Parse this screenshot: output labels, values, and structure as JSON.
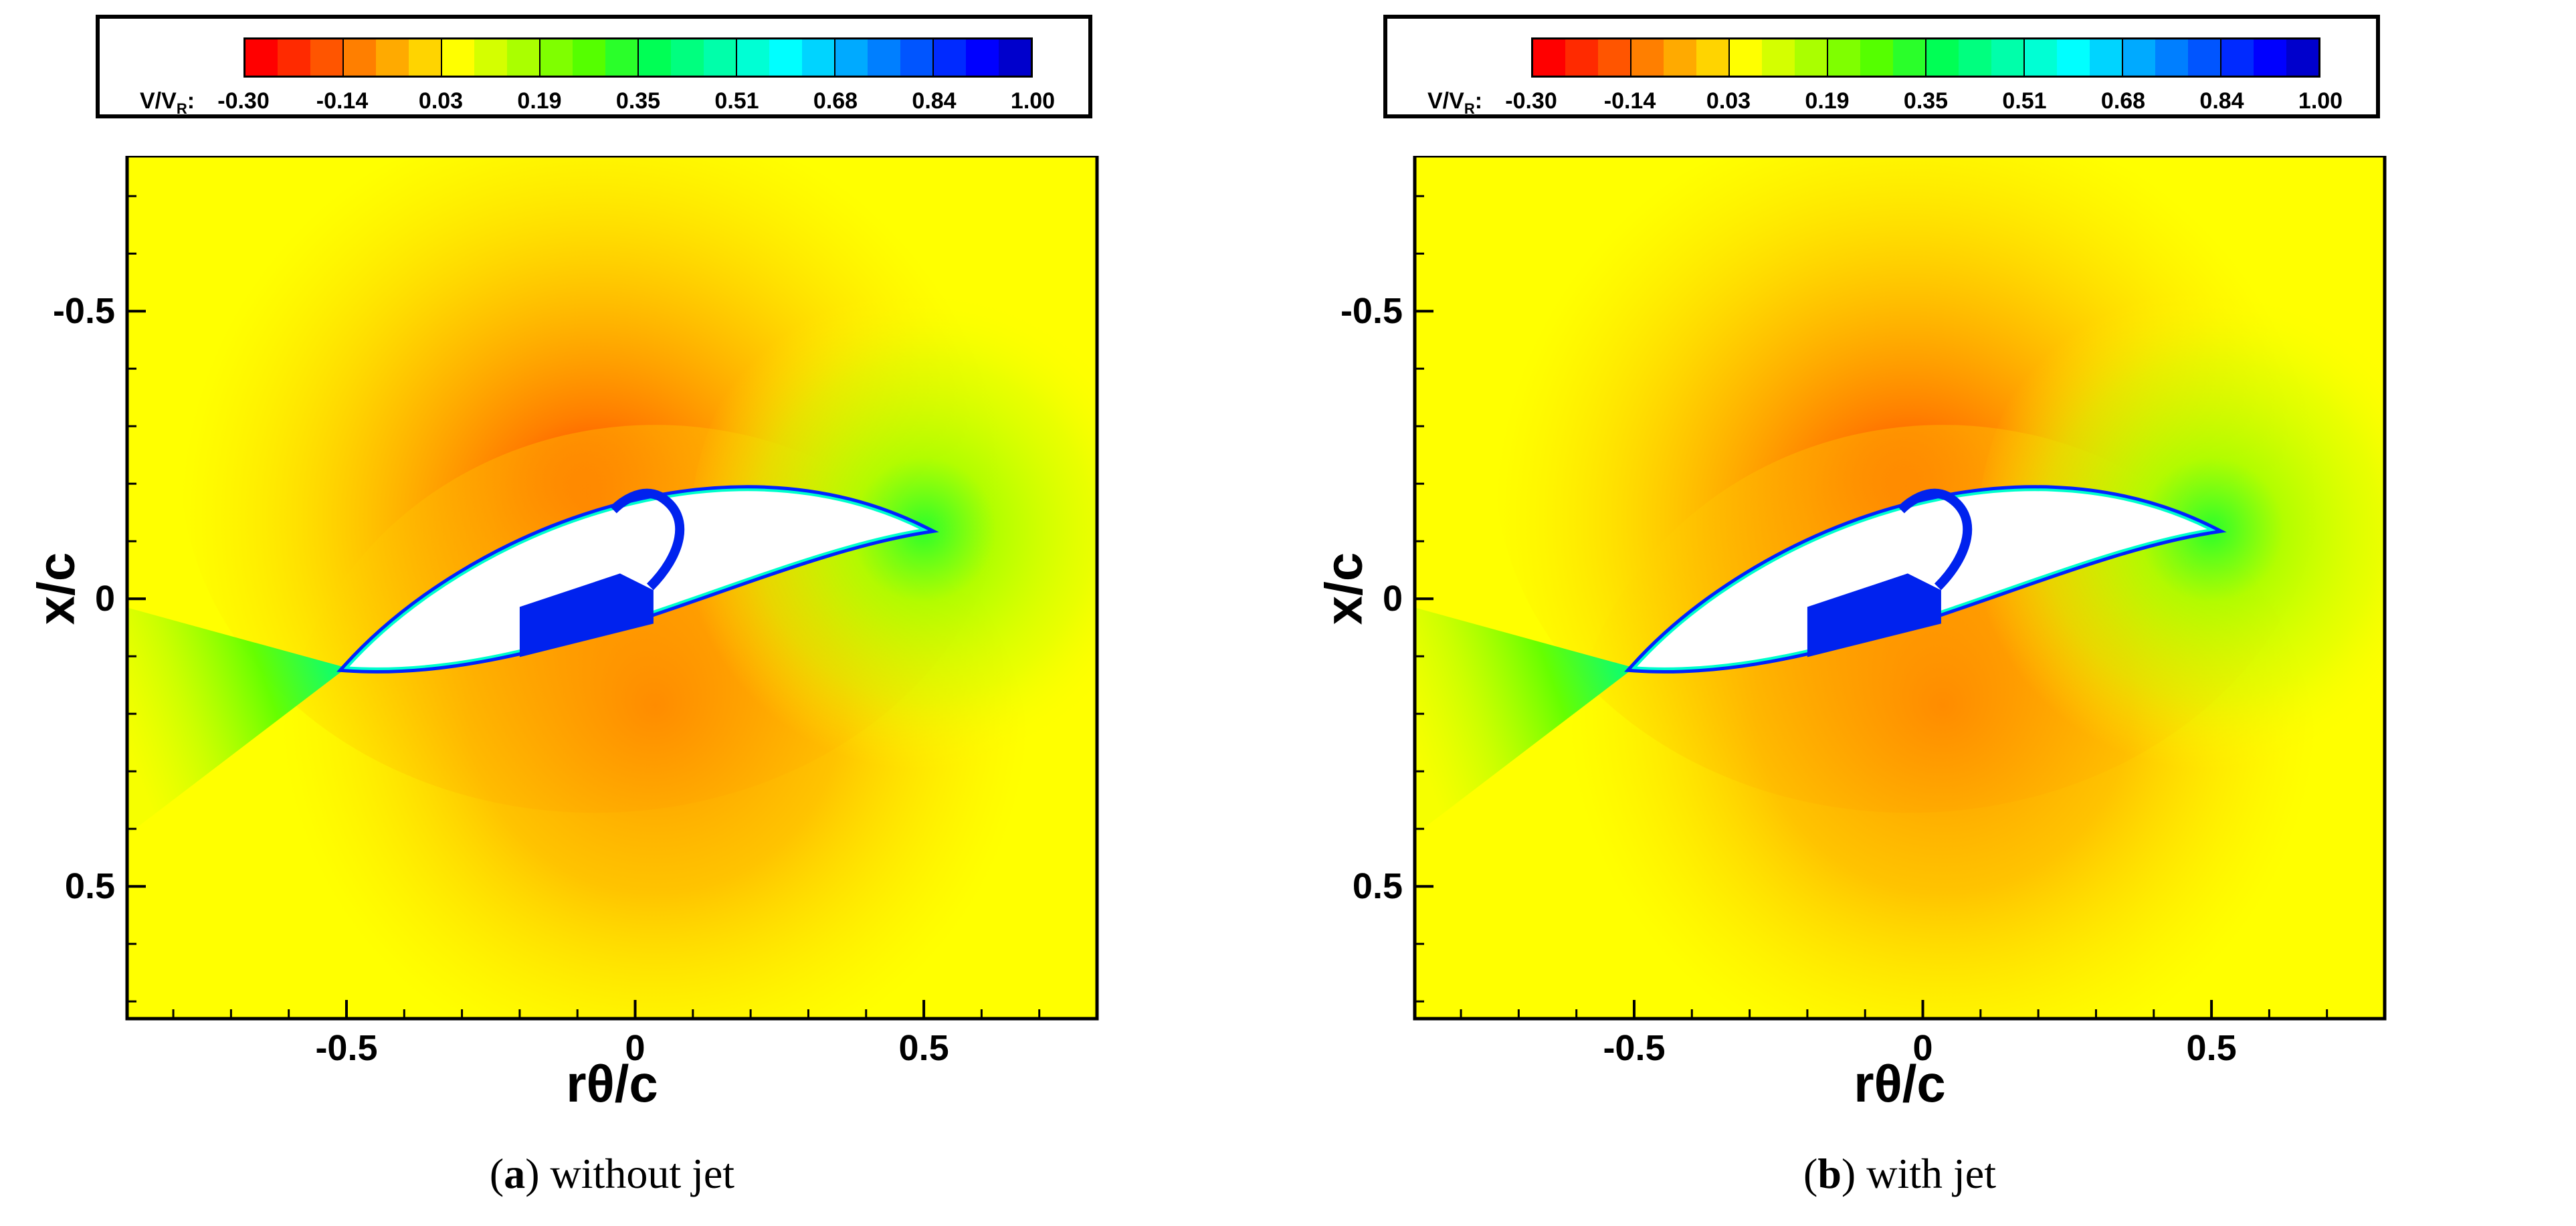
{
  "colorbar": {
    "label_main": "V/V",
    "label_sub": "R",
    "label_tail": ":",
    "ticks": [
      "-0.30",
      "-0.14",
      "0.03",
      "0.19",
      "0.35",
      "0.51",
      "0.68",
      "0.84",
      "1.00"
    ],
    "colors": [
      "#ff0000",
      "#ff2a00",
      "#ff5500",
      "#ff7f00",
      "#ffaa00",
      "#ffd400",
      "#ffff00",
      "#d4ff00",
      "#aaff00",
      "#7fff00",
      "#55ff00",
      "#2aff2a",
      "#00ff55",
      "#00ff7f",
      "#00ffaa",
      "#00ffd4",
      "#00ffff",
      "#00d4ff",
      "#00aaff",
      "#007fff",
      "#0055ff",
      "#002aff",
      "#0000ff",
      "#0000cc"
    ]
  },
  "panels": [
    {
      "caption_letter": "a",
      "caption_text": " without jet"
    },
    {
      "caption_letter": "b",
      "caption_text": " with jet"
    }
  ],
  "axes": {
    "xlabel": "rθ/c",
    "ylabel": "x/c"
  },
  "chart_data": [
    {
      "type": "heatmap",
      "title": "",
      "xlabel": "rθ/c",
      "ylabel": "x/c",
      "xlim": [
        -0.88,
        0.8
      ],
      "ylim": [
        0.73,
        -0.77
      ],
      "x_ticks": [
        -0.5,
        0,
        0.5
      ],
      "y_ticks": [
        -0.5,
        0,
        0.5
      ],
      "x_tick_labels": [
        "-0.5",
        "0",
        "0.5"
      ],
      "y_tick_labels": [
        "-0.5",
        "0",
        "0.5"
      ],
      "colorbar_label": "V/V_R",
      "colorbar_range": [
        -0.3,
        1.0
      ],
      "colorbar_ticks": [
        -0.3,
        -0.14,
        0.03,
        0.19,
        0.35,
        0.51,
        0.68,
        0.84,
        1.0
      ],
      "airfoil": {
        "leading_edge": [
          -0.5,
          0.12
        ],
        "trailing_edge": [
          0.5,
          -0.12
        ]
      },
      "jet": false
    },
    {
      "type": "heatmap",
      "title": "",
      "xlabel": "rθ/c",
      "ylabel": "x/c",
      "xlim": [
        -0.88,
        0.8
      ],
      "ylim": [
        0.73,
        -0.77
      ],
      "x_ticks": [
        -0.5,
        0,
        0.5
      ],
      "y_ticks": [
        -0.5,
        0,
        0.5
      ],
      "x_tick_labels": [
        "-0.5",
        "0",
        "0.5"
      ],
      "y_tick_labels": [
        "-0.5",
        "0",
        "0.5"
      ],
      "colorbar_label": "V/V_R",
      "colorbar_range": [
        -0.3,
        1.0
      ],
      "colorbar_ticks": [
        -0.3,
        -0.14,
        0.03,
        0.19,
        0.35,
        0.51,
        0.68,
        0.84,
        1.0
      ],
      "airfoil": {
        "leading_edge": [
          -0.5,
          0.12
        ],
        "trailing_edge": [
          0.5,
          -0.12
        ]
      },
      "jet": true
    }
  ]
}
